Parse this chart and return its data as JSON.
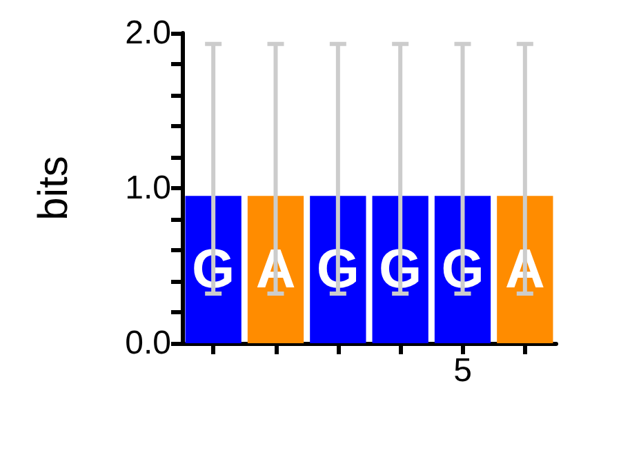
{
  "chart_data": {
    "type": "bar",
    "ylabel": "bits",
    "categories": [
      null,
      null,
      null,
      null,
      "5",
      null
    ],
    "values": [
      0.95,
      0.95,
      0.95,
      0.95,
      0.95,
      0.95
    ],
    "colors": [
      "#0000ff",
      "#ff8c00",
      "#0000ff",
      "#0000ff",
      "#0000ff",
      "#ff8c00"
    ],
    "value_labels": [
      "G",
      "A",
      "G",
      "G",
      "G",
      "A"
    ],
    "errors": [
      [
        0.32,
        1.93
      ],
      [
        0.32,
        1.93
      ],
      [
        0.32,
        1.93
      ],
      [
        0.32,
        1.93
      ],
      [
        0.32,
        1.93
      ],
      [
        0.32,
        1.93
      ]
    ],
    "ylim": [
      0,
      2
    ],
    "yticks": [
      {
        "value": 0,
        "label": "0.0"
      },
      {
        "value": 0.2,
        "label": null
      },
      {
        "value": 0.4,
        "label": null
      },
      {
        "value": 0.6,
        "label": null
      },
      {
        "value": 0.8,
        "label": null
      },
      {
        "value": 1,
        "label": "1.0"
      },
      {
        "value": 1.2,
        "label": null
      },
      {
        "value": 1.4,
        "label": null
      },
      {
        "value": 1.6,
        "label": null
      },
      {
        "value": 1.8,
        "label": null
      },
      {
        "value": 2,
        "label": "2.0"
      }
    ],
    "grid": false
  }
}
